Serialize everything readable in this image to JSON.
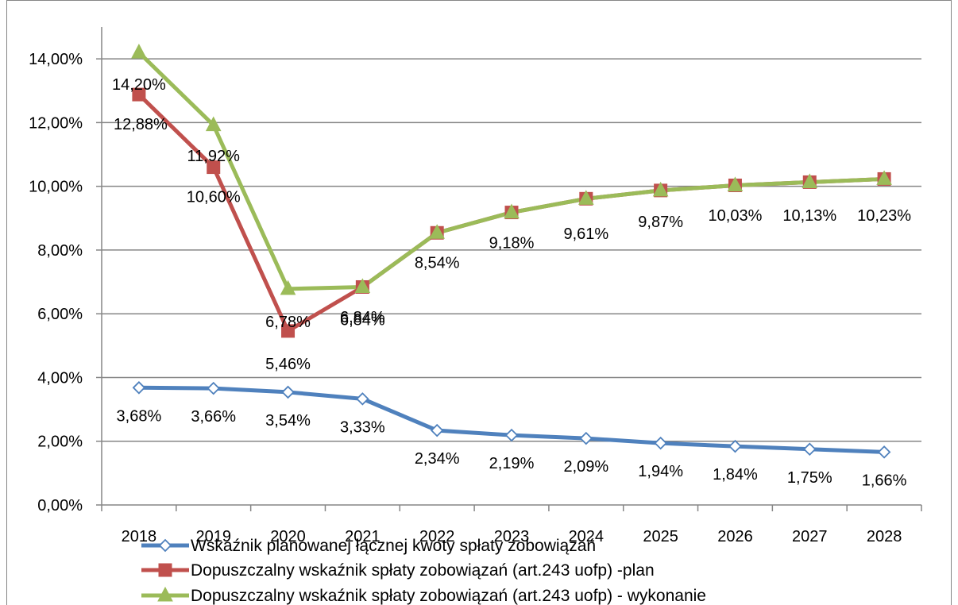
{
  "chart_data": {
    "type": "line",
    "categories": [
      "2018",
      "2019",
      "2020",
      "2021",
      "2022",
      "2023",
      "2024",
      "2025",
      "2026",
      "2027",
      "2028"
    ],
    "ylim": [
      0,
      0.15
    ],
    "y_ticks": [
      "0,00%",
      "2,00%",
      "4,00%",
      "6,00%",
      "8,00%",
      "10,00%",
      "12,00%",
      "14,00%"
    ],
    "grid": true,
    "legend_position": "bottom",
    "series": [
      {
        "name": "Wskaźnik planowanej łącznej kwoty spłaty zobowiązań",
        "color": "#4f81bd",
        "marker": "diamond-open",
        "values": [
          3.68,
          3.66,
          3.54,
          3.33,
          2.34,
          2.19,
          2.09,
          1.94,
          1.84,
          1.75,
          1.66
        ],
        "labels": [
          "3,68%",
          "3,66%",
          "3,54%",
          "3,33%",
          "2,34%",
          "2,19%",
          "2,09%",
          "1,94%",
          "1,84%",
          "1,75%",
          "1,66%"
        ]
      },
      {
        "name": "Dopuszczalny wskaźnik spłaty zobowiązań (art.243 uofp) -plan",
        "color": "#c0504d",
        "marker": "square",
        "values": [
          12.88,
          10.6,
          5.46,
          6.84,
          8.54,
          9.18,
          9.61,
          9.87,
          10.03,
          10.13,
          10.23
        ],
        "labels": [
          "12,88%",
          "10,60%",
          "5,46%",
          "6,84%",
          "8,54%",
          "9,18%",
          "9,61%",
          "9,87%",
          "10,03%",
          "10,13%",
          "10,23%"
        ]
      },
      {
        "name": "Dopuszczalny wskaźnik spłaty zobowiązań (art.243 uofp) - wykonanie",
        "color": "#9bbb59",
        "marker": "triangle",
        "values": [
          14.2,
          11.92,
          6.78,
          6.84,
          8.54,
          9.18,
          9.61,
          9.87,
          10.03,
          10.13,
          10.23
        ],
        "labels": [
          "14,20%",
          "11,92%",
          "6,78%",
          "6,84%",
          "",
          "",
          "",
          "",
          "",
          "",
          ""
        ]
      }
    ]
  }
}
